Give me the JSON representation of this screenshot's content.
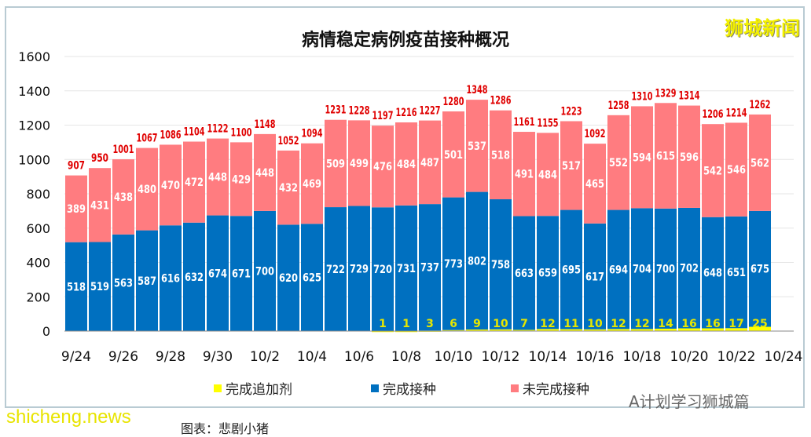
{
  "chart_data": {
    "type": "bar",
    "stacked": true,
    "title": "病情稳定病例疫苗接种概况",
    "ylim": [
      0,
      1600
    ],
    "yticks": [
      0,
      200,
      400,
      600,
      800,
      1000,
      1200,
      1400,
      1600
    ],
    "grid": true,
    "legend_position": "bottom",
    "categories": [
      "9/24",
      "9/25",
      "9/26",
      "9/27",
      "9/28",
      "9/29",
      "9/30",
      "10/1",
      "10/2",
      "10/3",
      "10/4",
      "10/5",
      "10/6",
      "10/7",
      "10/8",
      "10/9",
      "10/10",
      "10/11",
      "10/12",
      "10/13",
      "10/14",
      "10/15",
      "10/16",
      "10/17",
      "10/18",
      "10/19",
      "10/20",
      "10/21",
      "10/22",
      "10/23"
    ],
    "xtick_labels": [
      "9/24",
      "9/26",
      "9/28",
      "9/30",
      "10/2",
      "10/4",
      "10/6",
      "10/8",
      "10/10",
      "10/12",
      "10/14",
      "10/16",
      "10/18",
      "10/20",
      "10/22",
      "10/24"
    ],
    "series": [
      {
        "name": "完成追加剂",
        "color": "#ffff00",
        "values": [
          0,
          0,
          0,
          0,
          0,
          0,
          0,
          0,
          0,
          0,
          0,
          0,
          0,
          1,
          1,
          3,
          6,
          9,
          10,
          7,
          12,
          11,
          10,
          12,
          12,
          14,
          16,
          16,
          17,
          25
        ]
      },
      {
        "name": "完成接种",
        "color": "#0070c0",
        "values": [
          518,
          519,
          563,
          587,
          616,
          632,
          674,
          671,
          700,
          620,
          625,
          722,
          729,
          720,
          731,
          737,
          773,
          802,
          758,
          663,
          659,
          695,
          617,
          694,
          704,
          700,
          702,
          648,
          651,
          675
        ]
      },
      {
        "name": "未完成接种",
        "color": "#ff7c80",
        "values": [
          389,
          431,
          438,
          480,
          470,
          472,
          448,
          429,
          448,
          432,
          469,
          509,
          499,
          476,
          484,
          487,
          501,
          537,
          518,
          491,
          484,
          517,
          465,
          552,
          594,
          615,
          596,
          542,
          546,
          562
        ]
      }
    ],
    "totals": [
      907,
      950,
      1001,
      1067,
      1086,
      1104,
      1122,
      1100,
      1148,
      1052,
      1094,
      1231,
      1228,
      1197,
      1216,
      1227,
      1280,
      1348,
      1286,
      1161,
      1155,
      1223,
      1092,
      1258,
      1310,
      1329,
      1314,
      1206,
      1214,
      1262
    ]
  },
  "watermarks": {
    "top_right": "狮城新闻",
    "bottom_left": "shicheng.news",
    "bottom_right": "A计划学习狮城篇"
  },
  "caption": "图表：悲剧小猪"
}
